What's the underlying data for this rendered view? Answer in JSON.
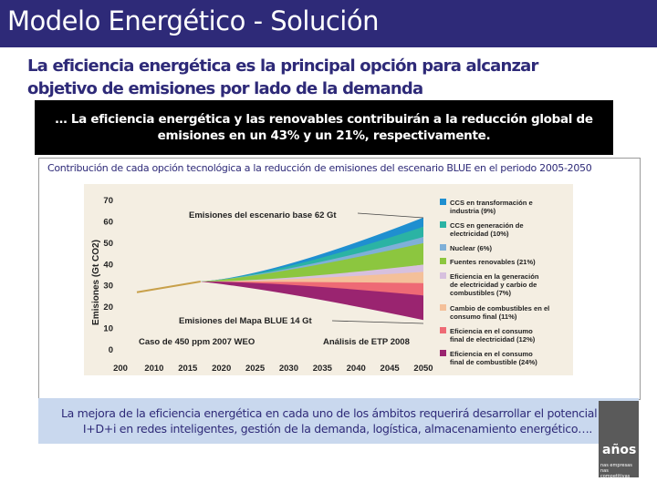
{
  "slide": {
    "title": "Modelo Energético - Solución",
    "subtitle": "La eficiencia energética es la principal opción para alcanzar objetivo de emisiones por lado de la demanda",
    "highlight": "… La eficiencia energética y las renovables contribuirán a la reducción global de emisiones en un 43% y un 21%, respectivamente.",
    "chart_caption": "Contribución de cada opción tecnológica a la reducción de emisiones del escenario BLUE en el periodo 2005-2050",
    "bottom_note": "La mejora de la eficiencia energética en cada uno de los ámbitos requerirá desarrollar el potencial de I+D+i en redes inteligentes, gestión de la demanda, logística, almacenamiento energético….",
    "logo_years": "años",
    "logo_tagline": "nas empresas nas competitivas"
  },
  "chart_data": {
    "type": "area",
    "ylabel": "Emisiones (Gt CO2)",
    "ylim": [
      0,
      70
    ],
    "yticks": [
      0,
      10,
      20,
      30,
      40,
      50,
      60,
      70
    ],
    "x_ticks": [
      "200",
      "2010",
      "2015",
      "2020",
      "2025",
      "2030",
      "2035",
      "2040",
      "2045",
      "2050"
    ],
    "baseline_label": "Emisiones del escenario base 62 Gt",
    "blue_label": "Emisiones del Mapa BLUE 14 Gt",
    "case_label": "Caso de 450 ppm 2007 WEO",
    "etp_label": "Análisis de ETP 2008",
    "start": {
      "year": 2005,
      "value": 27
    },
    "split": {
      "year": 2015,
      "value": 32
    },
    "end_baseline": 62,
    "end_blue": 14,
    "series": [
      {
        "name": "CCS en transformación e industria (9%)",
        "share": 9,
        "color": "#1f8fd0"
      },
      {
        "name": "CCS en generación de electricidad (10%)",
        "share": 10,
        "color": "#2bb3a4"
      },
      {
        "name": "Nuclear (6%)",
        "share": 6,
        "color": "#7fb0d8"
      },
      {
        "name": "Fuentes renovables (21%)",
        "share": 21,
        "color": "#8cc63f"
      },
      {
        "name": "Eficiencia en la generación de electricidad y carbio de combustibles (7%)",
        "share": 7,
        "color": "#d7c0de"
      },
      {
        "name": "Cambio de combustibles en el consumo final (11%)",
        "share": 11,
        "color": "#f4c09a"
      },
      {
        "name": "Eficiencia en el consumo final de electricidad (12%)",
        "share": 12,
        "color": "#ee6a75"
      },
      {
        "name": "Eficiencia en el consumo final de combustible (24%)",
        "share": 24,
        "color": "#9a2470"
      }
    ]
  }
}
